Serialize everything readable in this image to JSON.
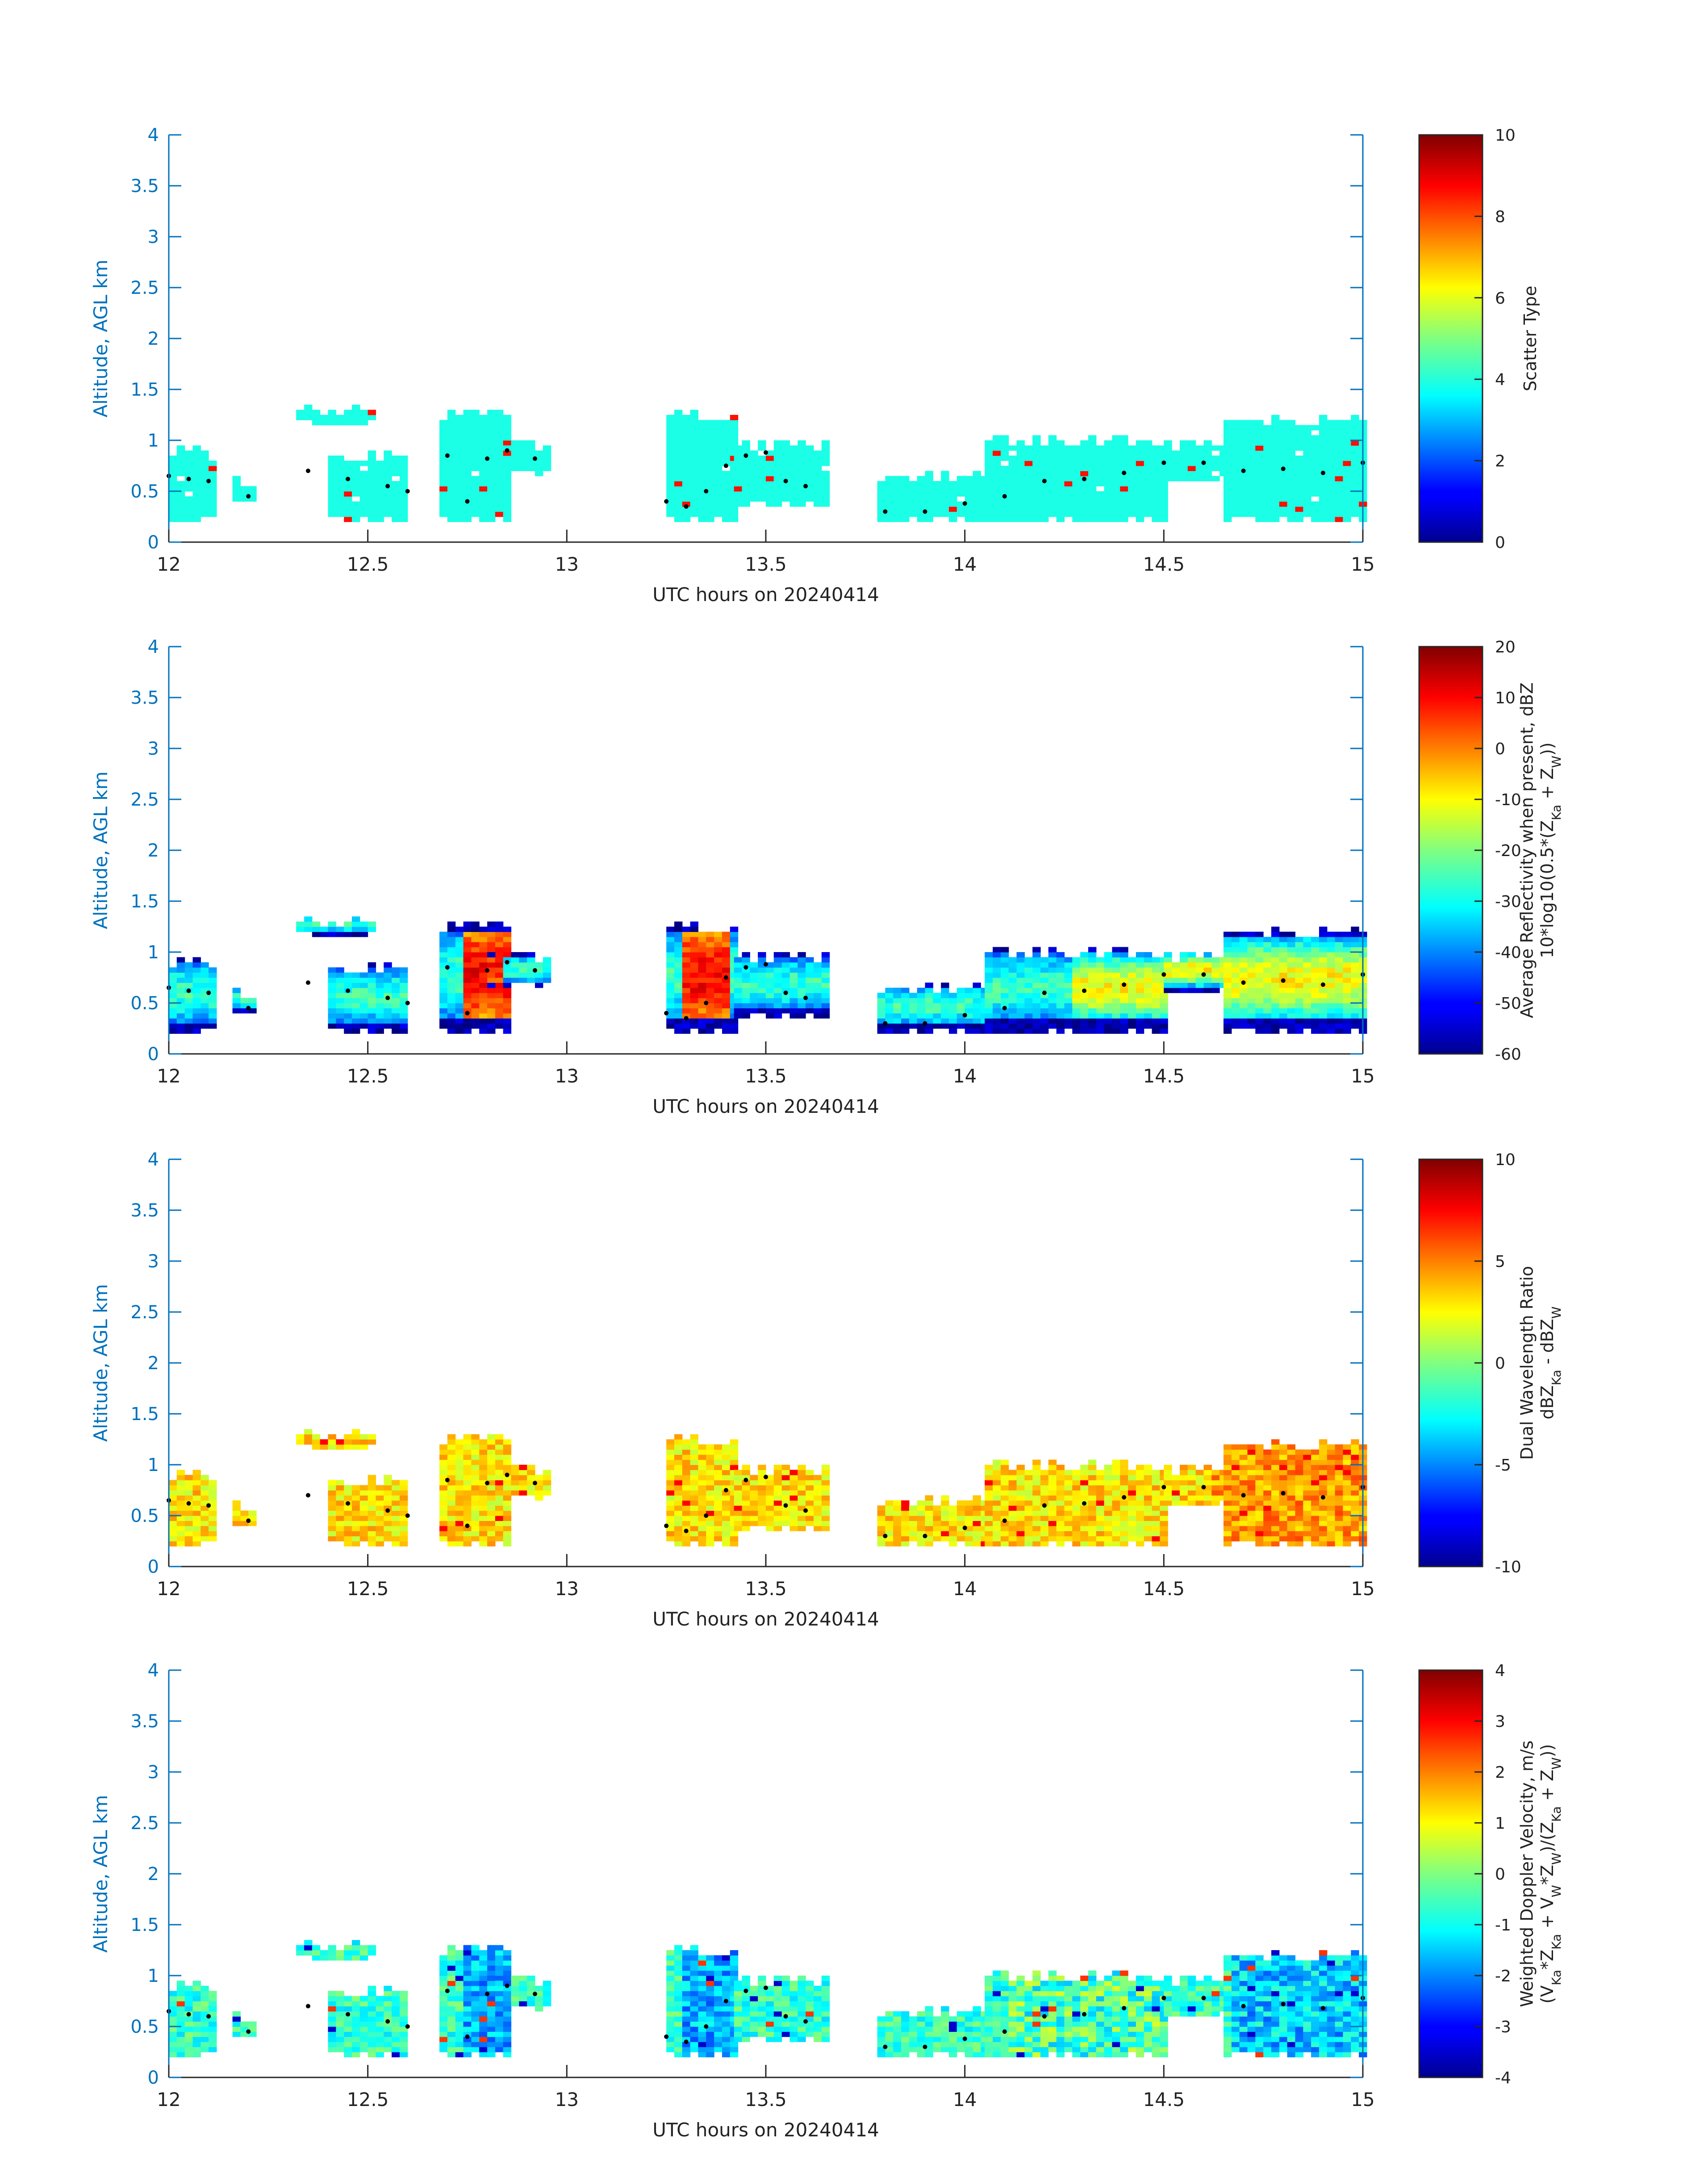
{
  "chart_data": [
    {
      "type": "heatmap",
      "xlabel": "UTC hours on 20240414",
      "ylabel": "Altitude, AGL km",
      "xlim": [
        12,
        15
      ],
      "ylim": [
        0,
        4
      ],
      "xticks": [
        12,
        12.5,
        13,
        13.5,
        14,
        14.5,
        15
      ],
      "yticks": [
        0,
        0.5,
        1,
        1.5,
        2,
        2.5,
        3,
        3.5,
        4
      ],
      "colorbar": {
        "label_lines": [
          "Scatter Type"
        ],
        "range": [
          0,
          10
        ],
        "ticks": [
          0,
          2,
          4,
          6,
          8,
          10
        ],
        "colormap": "jet"
      },
      "field": "scatter_type"
    },
    {
      "type": "heatmap",
      "xlabel": "UTC hours on 20240414",
      "ylabel": "Altitude, AGL km",
      "xlim": [
        12,
        15
      ],
      "ylim": [
        0,
        4
      ],
      "xticks": [
        12,
        12.5,
        13,
        13.5,
        14,
        14.5,
        15
      ],
      "yticks": [
        0,
        0.5,
        1,
        1.5,
        2,
        2.5,
        3,
        3.5,
        4
      ],
      "colorbar": {
        "label_lines": [
          "Average Reflectivity when present, dBZ",
          "10*log10(0.5*(Z",
          "Ka",
          " + Z",
          "W",
          "))"
        ],
        "range": [
          -60,
          20
        ],
        "ticks": [
          -60,
          -50,
          -40,
          -30,
          -20,
          -10,
          0,
          10,
          20
        ],
        "colormap": "jet"
      },
      "field": "reflectivity"
    },
    {
      "type": "heatmap",
      "xlabel": "UTC hours on 20240414",
      "ylabel": "Altitude, AGL km",
      "xlim": [
        12,
        15
      ],
      "ylim": [
        0,
        4
      ],
      "xticks": [
        12,
        12.5,
        13,
        13.5,
        14,
        14.5,
        15
      ],
      "yticks": [
        0,
        0.5,
        1,
        1.5,
        2,
        2.5,
        3,
        3.5,
        4
      ],
      "colorbar": {
        "label_lines": [
          "Dual Wavelength Ratio",
          "dBZ",
          "Ka",
          " - dBZ",
          "W"
        ],
        "range": [
          -10,
          10
        ],
        "ticks": [
          -10,
          -5,
          0,
          5,
          10
        ],
        "colormap": "jet"
      },
      "field": "dwr"
    },
    {
      "type": "heatmap",
      "xlabel": "UTC hours on 20240414",
      "ylabel": "Altitude, AGL km",
      "xlim": [
        12,
        15
      ],
      "ylim": [
        0,
        4
      ],
      "xticks": [
        12,
        12.5,
        13,
        13.5,
        14,
        14.5,
        15
      ],
      "yticks": [
        0,
        0.5,
        1,
        1.5,
        2,
        2.5,
        3,
        3.5,
        4
      ],
      "colorbar": {
        "label_lines": [
          "Weighted Doppler Velocity, m/s",
          "(V",
          "Ka",
          "*Z",
          "Ka",
          " + V",
          "W",
          "*Z",
          "W",
          ")/(Z",
          "Ka",
          " + Z",
          "W",
          "))"
        ],
        "range": [
          -4,
          4
        ],
        "ticks": [
          -4,
          -3,
          -2,
          -1,
          0,
          1,
          2,
          3,
          4
        ],
        "colormap": "jet"
      },
      "field": "doppler_velocity"
    }
  ],
  "cloud_layers": {
    "time_step_h": 0.02,
    "alt_step_km": 0.05,
    "segments": [
      {
        "t0": 12.0,
        "t1": 12.12,
        "base": 0.2,
        "top": 0.95
      },
      {
        "t0": 12.16,
        "t1": 12.22,
        "base": 0.4,
        "top": 0.65
      },
      {
        "t0": 12.32,
        "t1": 12.52,
        "base": 1.15,
        "top": 1.35
      },
      {
        "t0": 12.4,
        "t1": 12.6,
        "base": 0.2,
        "top": 0.88
      },
      {
        "t0": 12.68,
        "t1": 12.85,
        "base": 0.2,
        "top": 1.3
      },
      {
        "t0": 12.8,
        "t1": 12.96,
        "base": 0.65,
        "top": 0.98
      },
      {
        "t0": 13.25,
        "t1": 13.42,
        "base": 0.2,
        "top": 1.28
      },
      {
        "t0": 13.42,
        "t1": 13.65,
        "base": 0.35,
        "top": 0.98
      },
      {
        "t0": 13.78,
        "t1": 14.1,
        "base": 0.2,
        "top": 0.7
      },
      {
        "t0": 14.05,
        "t1": 14.5,
        "base": 0.2,
        "top": 1.05
      },
      {
        "t0": 14.5,
        "t1": 14.65,
        "base": 0.6,
        "top": 1.0
      },
      {
        "t0": 14.65,
        "t1": 15.0,
        "base": 0.2,
        "top": 1.22
      }
    ],
    "cloud_base_track": {
      "t": [
        12.0,
        12.05,
        12.1,
        12.2,
        12.35,
        12.45,
        12.55,
        12.6,
        12.7,
        12.75,
        12.8,
        12.85,
        12.92,
        13.25,
        13.3,
        13.35,
        13.4,
        13.45,
        13.5,
        13.55,
        13.6,
        13.8,
        13.9,
        14.0,
        14.1,
        14.2,
        14.3,
        14.4,
        14.5,
        14.6,
        14.7,
        14.8,
        14.9,
        15.0
      ],
      "alt": [
        0.65,
        0.62,
        0.6,
        0.45,
        0.7,
        0.62,
        0.55,
        0.5,
        0.85,
        0.4,
        0.82,
        0.9,
        0.82,
        0.4,
        0.35,
        0.5,
        0.75,
        0.85,
        0.88,
        0.6,
        0.55,
        0.3,
        0.3,
        0.38,
        0.45,
        0.6,
        0.62,
        0.68,
        0.78,
        0.78,
        0.7,
        0.72,
        0.68,
        0.78
      ]
    }
  }
}
